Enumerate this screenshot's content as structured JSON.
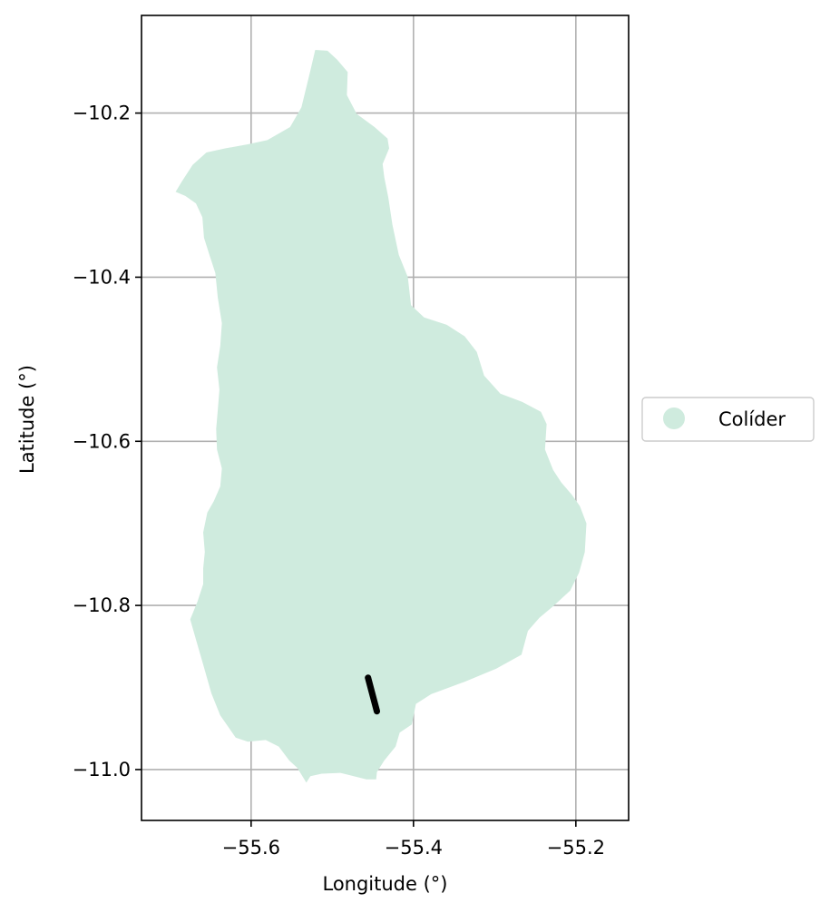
{
  "chart_data": {
    "type": "map",
    "xlabel": "Longitude (°)",
    "ylabel": "Latitude (°)",
    "xlim": [
      -55.735,
      -55.135
    ],
    "ylim": [
      -11.062,
      -10.081
    ],
    "xticks": [
      -55.6,
      -55.4,
      -55.2
    ],
    "xtick_labels": [
      "−55.6",
      "−55.4",
      "−55.2"
    ],
    "yticks": [
      -10.2,
      -10.4,
      -10.6,
      -10.8,
      -11.0
    ],
    "ytick_labels": [
      "−10.2",
      "−10.4",
      "−10.6",
      "−10.8",
      "−11.0"
    ],
    "grid": true,
    "legend": {
      "placement": "right",
      "entries": [
        {
          "label": "Colíder",
          "color": "#cfebde"
        }
      ]
    },
    "region": {
      "name": "Colíder",
      "fill": "#cfebde",
      "boundary": [
        [
          -55.527,
          -10.148
        ],
        [
          -55.521,
          -10.123
        ],
        [
          -55.506,
          -10.124
        ],
        [
          -55.494,
          -10.135
        ],
        [
          -55.481,
          -10.15
        ],
        [
          -55.482,
          -10.178
        ],
        [
          -55.47,
          -10.201
        ],
        [
          -55.448,
          -10.217
        ],
        [
          -55.432,
          -10.231
        ],
        [
          -55.43,
          -10.243
        ],
        [
          -55.438,
          -10.262
        ],
        [
          -55.436,
          -10.278
        ],
        [
          -55.431,
          -10.303
        ],
        [
          -55.426,
          -10.336
        ],
        [
          -55.418,
          -10.373
        ],
        [
          -55.407,
          -10.4
        ],
        [
          -55.403,
          -10.434
        ],
        [
          -55.387,
          -10.449
        ],
        [
          -55.359,
          -10.458
        ],
        [
          -55.337,
          -10.472
        ],
        [
          -55.322,
          -10.491
        ],
        [
          -55.313,
          -10.52
        ],
        [
          -55.293,
          -10.542
        ],
        [
          -55.266,
          -10.552
        ],
        [
          -55.243,
          -10.564
        ],
        [
          -55.236,
          -10.579
        ],
        [
          -55.238,
          -10.61
        ],
        [
          -55.228,
          -10.635
        ],
        [
          -55.218,
          -10.65
        ],
        [
          -55.205,
          -10.665
        ],
        [
          -55.195,
          -10.679
        ],
        [
          -55.187,
          -10.7
        ],
        [
          -55.189,
          -10.735
        ],
        [
          -55.196,
          -10.76
        ],
        [
          -55.207,
          -10.782
        ],
        [
          -55.228,
          -10.801
        ],
        [
          -55.245,
          -10.815
        ],
        [
          -55.259,
          -10.831
        ],
        [
          -55.267,
          -10.86
        ],
        [
          -55.298,
          -10.877
        ],
        [
          -55.337,
          -10.893
        ],
        [
          -55.378,
          -10.908
        ],
        [
          -55.397,
          -10.92
        ],
        [
          -55.402,
          -10.945
        ],
        [
          -55.417,
          -10.955
        ],
        [
          -55.422,
          -10.972
        ],
        [
          -55.436,
          -10.989
        ],
        [
          -55.445,
          -11.003
        ],
        [
          -55.446,
          -11.012
        ],
        [
          -55.458,
          -11.012
        ],
        [
          -55.49,
          -11.004
        ],
        [
          -55.513,
          -11.005
        ],
        [
          -55.527,
          -11.008
        ],
        [
          -55.532,
          -11.016
        ],
        [
          -55.543,
          -10.998
        ],
        [
          -55.553,
          -10.989
        ],
        [
          -55.566,
          -10.972
        ],
        [
          -55.582,
          -10.964
        ],
        [
          -55.604,
          -10.966
        ],
        [
          -55.619,
          -10.961
        ],
        [
          -55.638,
          -10.934
        ],
        [
          -55.649,
          -10.907
        ],
        [
          -55.659,
          -10.872
        ],
        [
          -55.669,
          -10.838
        ],
        [
          -55.675,
          -10.817
        ],
        [
          -55.666,
          -10.795
        ],
        [
          -55.659,
          -10.774
        ],
        [
          -55.659,
          -10.755
        ],
        [
          -55.657,
          -10.735
        ],
        [
          -55.659,
          -10.711
        ],
        [
          -55.654,
          -10.687
        ],
        [
          -55.646,
          -10.673
        ],
        [
          -55.638,
          -10.655
        ],
        [
          -55.636,
          -10.633
        ],
        [
          -55.642,
          -10.61
        ],
        [
          -55.643,
          -10.585
        ],
        [
          -55.641,
          -10.562
        ],
        [
          -55.639,
          -10.537
        ],
        [
          -55.642,
          -10.51
        ],
        [
          -55.638,
          -10.484
        ],
        [
          -55.636,
          -10.456
        ],
        [
          -55.641,
          -10.425
        ],
        [
          -55.644,
          -10.395
        ],
        [
          -55.651,
          -10.374
        ],
        [
          -55.658,
          -10.352
        ],
        [
          -55.66,
          -10.327
        ],
        [
          -55.668,
          -10.31
        ],
        [
          -55.681,
          -10.301
        ],
        [
          -55.693,
          -10.296
        ],
        [
          -55.685,
          -10.283
        ],
        [
          -55.672,
          -10.263
        ],
        [
          -55.655,
          -10.248
        ],
        [
          -55.632,
          -10.243
        ],
        [
          -55.604,
          -10.238
        ],
        [
          -55.58,
          -10.233
        ],
        [
          -55.552,
          -10.217
        ],
        [
          -55.538,
          -10.193
        ]
      ]
    },
    "line_feature": {
      "color": "#000000",
      "points": [
        [
          -55.456,
          -10.888
        ],
        [
          -55.445,
          -10.929
        ]
      ]
    }
  }
}
